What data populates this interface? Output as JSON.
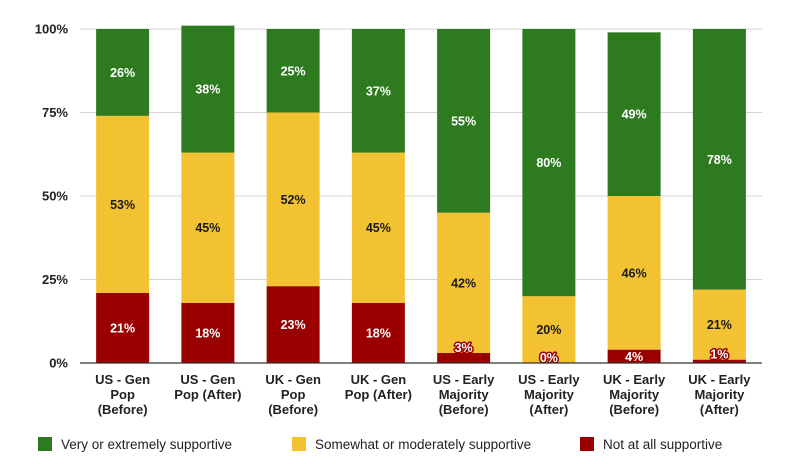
{
  "chart_data": {
    "type": "bar",
    "stacked": true,
    "percent_stacked": true,
    "categories": [
      [
        "US - Gen",
        "Pop",
        "(Before)"
      ],
      [
        "US - Gen",
        "Pop (After)"
      ],
      [
        "UK - Gen",
        "Pop",
        "(Before)"
      ],
      [
        "UK - Gen",
        "Pop (After)"
      ],
      [
        "US - Early",
        "Majority",
        "(Before)"
      ],
      [
        "US - Early",
        "Majority",
        "(After)"
      ],
      [
        "UK - Early",
        "Majority",
        "(Before)"
      ],
      [
        "UK - Early",
        "Majority",
        "(After)"
      ]
    ],
    "series": [
      {
        "name": "Not at all supportive",
        "color": "#9b0000",
        "values": [
          21,
          18,
          23,
          18,
          3,
          0,
          4,
          1
        ],
        "labels": [
          "21%",
          "18%",
          "23%",
          "18%",
          "3%",
          "0%",
          "4%",
          "1%"
        ]
      },
      {
        "name": "Somewhat or moderately supportive",
        "color": "#f2c232",
        "values": [
          53,
          45,
          52,
          45,
          42,
          20,
          46,
          21
        ],
        "labels": [
          "53%",
          "45%",
          "52%",
          "45%",
          "42%",
          "20%",
          "46%",
          "21%"
        ]
      },
      {
        "name": "Very or extremely supportive",
        "color": "#2d7a1f",
        "values": [
          26,
          38,
          25,
          37,
          55,
          80,
          49,
          78
        ],
        "labels": [
          "26%",
          "38%",
          "25%",
          "37%",
          "55%",
          "80%",
          "49%",
          "78%"
        ]
      }
    ],
    "legend_order": [
      "Very or extremely supportive",
      "Somewhat or moderately supportive",
      "Not at all supportive"
    ],
    "yticks": [
      "0%",
      "25%",
      "50%",
      "75%",
      "100%"
    ],
    "ylim": [
      0,
      100
    ],
    "grid": true,
    "legend_position": "bottom"
  }
}
